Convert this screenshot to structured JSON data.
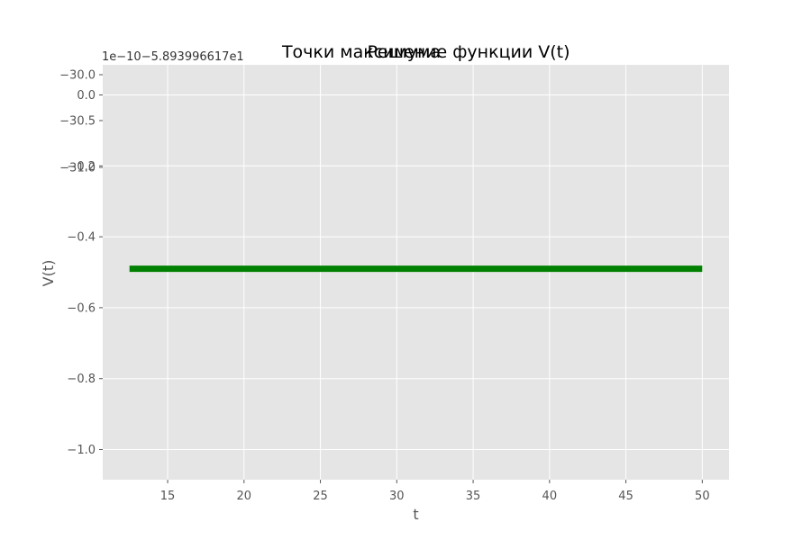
{
  "chart_data": {
    "type": "line",
    "titles": [
      "Точки максимума",
      "Решение функции V(t)"
    ],
    "xlabel": "t",
    "ylabel": "V(t)",
    "y_offset_label": "1e−10−5.893996617e1",
    "x_ticks": [
      "15",
      "20",
      "25",
      "30",
      "35",
      "40",
      "45",
      "50"
    ],
    "y_ticks": [
      "0.0",
      "−0.2",
      "−0.4",
      "−0.6",
      "−0.8",
      "−1.0"
    ],
    "overlay_y_ticks": [
      "−30.0",
      "−30.5",
      "−31.0"
    ],
    "xlim": [
      10.75,
      51.75
    ],
    "ylim": [
      -1.085,
      0.085
    ],
    "grid": true,
    "colors": {
      "background": "#e5e5e5",
      "grid": "#ffffff",
      "line": "#008000"
    },
    "series": [
      {
        "x": [
          12.5,
          50
        ],
        "y": [
          -0.49,
          -0.49
        ]
      }
    ]
  }
}
